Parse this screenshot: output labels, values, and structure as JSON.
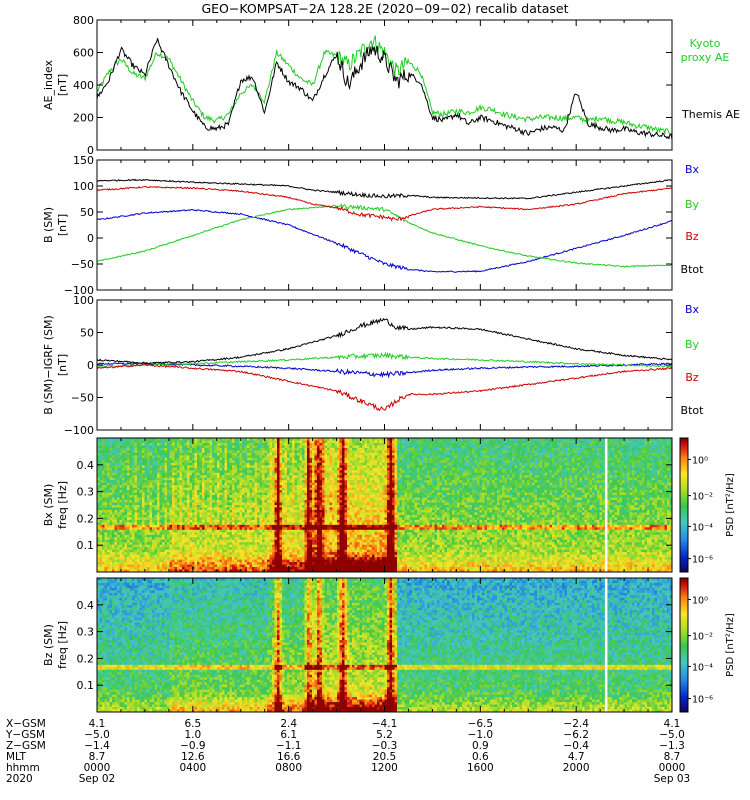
{
  "title": "GEO−KOMPSAT−2A 128.2E (2020−09−02) recalib dataset",
  "chart_data": [
    {
      "type": "line",
      "ylabel_1": "AE_index",
      "ylabel_2": "[nT]",
      "xlim": [
        0,
        24
      ],
      "ylim": [
        0,
        800
      ],
      "y_ticks": [
        "0",
        "200",
        "400",
        "600",
        "800"
      ],
      "series": [
        {
          "name": "Kyoto proxy AE",
          "color": "#22cc22",
          "x": [
            0,
            0.5,
            1,
            1.5,
            2,
            2.5,
            3,
            3.5,
            4,
            4.5,
            5,
            5.5,
            6,
            6.5,
            7,
            7.5,
            8,
            8.5,
            9,
            9.5,
            10,
            10.5,
            11,
            11.5,
            12,
            12.5,
            13,
            13.5,
            14,
            14.5,
            15,
            15.5,
            16,
            16.5,
            17,
            17.5,
            18,
            18.5,
            19,
            19.5,
            20,
            20.5,
            21,
            21.5,
            22,
            22.5,
            23,
            23.5,
            24
          ],
          "y": [
            360,
            480,
            560,
            470,
            440,
            600,
            560,
            430,
            300,
            200,
            180,
            220,
            350,
            400,
            300,
            600,
            520,
            440,
            400,
            600,
            580,
            520,
            600,
            680,
            600,
            480,
            540,
            480,
            230,
            220,
            240,
            230,
            260,
            250,
            220,
            200,
            190,
            200,
            200,
            195,
            200,
            180,
            200,
            180,
            170,
            150,
            140,
            120,
            110
          ]
        },
        {
          "name": "Themis AE",
          "color": "#000000",
          "x": [
            0,
            0.5,
            1,
            1.5,
            2,
            2.5,
            3,
            3.5,
            4,
            4.5,
            5,
            5.5,
            6,
            6.5,
            7,
            7.5,
            8,
            8.5,
            9,
            9.5,
            10,
            10.5,
            11,
            11.5,
            12,
            12.5,
            13,
            13.5,
            14,
            14.5,
            15,
            15.5,
            16,
            16.5,
            17,
            17.5,
            18,
            18.5,
            19,
            19.5,
            20,
            20.5,
            21,
            21.5,
            22,
            22.5,
            23,
            23.5,
            24
          ],
          "y": [
            320,
            430,
            620,
            520,
            460,
            680,
            520,
            360,
            240,
            140,
            130,
            160,
            430,
            450,
            230,
            540,
            420,
            380,
            300,
            460,
            590,
            400,
            530,
            630,
            560,
            420,
            470,
            420,
            200,
            180,
            220,
            160,
            200,
            180,
            150,
            130,
            100,
            130,
            140,
            120,
            360,
            160,
            140,
            120,
            130,
            110,
            100,
            90,
            80
          ]
        }
      ]
    },
    {
      "type": "line",
      "ylabel_1": "B (SM)",
      "ylabel_2": "[nT]",
      "xlim": [
        0,
        24
      ],
      "ylim": [
        -100,
        150
      ],
      "y_ticks": [
        "−100",
        "−50",
        "0",
        "50",
        "100",
        "150"
      ],
      "series": [
        {
          "name": "Bx",
          "color": "#0000cc",
          "x": [
            0,
            2,
            4,
            6,
            8,
            10,
            11,
            12,
            13,
            14,
            16,
            18,
            20,
            22,
            24
          ],
          "y": [
            35,
            48,
            54,
            46,
            25,
            -10,
            -30,
            -50,
            -60,
            -65,
            -64,
            -45,
            -20,
            5,
            33
          ]
        },
        {
          "name": "By",
          "color": "#22cc22",
          "x": [
            0,
            2,
            4,
            6,
            8,
            10,
            12,
            13,
            14,
            16,
            18,
            20,
            22,
            24
          ],
          "y": [
            -45,
            -25,
            5,
            35,
            55,
            62,
            55,
            30,
            10,
            -15,
            -35,
            -48,
            -55,
            -52
          ]
        },
        {
          "name": "Bz",
          "color": "#cc0000",
          "x": [
            0,
            2,
            4,
            6,
            8,
            9,
            10,
            11,
            12,
            12.5,
            13,
            14,
            16,
            18,
            20,
            22,
            24
          ],
          "y": [
            92,
            98,
            96,
            90,
            78,
            65,
            58,
            45,
            40,
            35,
            42,
            55,
            60,
            55,
            65,
            85,
            96
          ]
        },
        {
          "name": "Btot",
          "color": "#000000",
          "x": [
            0,
            2,
            4,
            6,
            8,
            9,
            10,
            11,
            12,
            13,
            14,
            16,
            18,
            20,
            22,
            24
          ],
          "y": [
            110,
            112,
            107,
            104,
            100,
            92,
            88,
            83,
            80,
            82,
            78,
            77,
            76,
            88,
            100,
            112
          ]
        }
      ]
    },
    {
      "type": "line",
      "ylabel_1": "B (SM)−IGRF (SM)",
      "ylabel_2": "[nT]",
      "xlim": [
        0,
        24
      ],
      "ylim": [
        -100,
        100
      ],
      "y_ticks": [
        "−100",
        "−50",
        "0",
        "50",
        "100"
      ],
      "series": [
        {
          "name": "Bx",
          "color": "#0000cc",
          "x": [
            0,
            2,
            4,
            6,
            8,
            10,
            12,
            13,
            14,
            16,
            18,
            20,
            22,
            24
          ],
          "y": [
            2,
            2,
            0,
            -2,
            -5,
            -10,
            -15,
            -12,
            -8,
            -5,
            -3,
            -2,
            0,
            2
          ]
        },
        {
          "name": "By",
          "color": "#22cc22",
          "x": [
            0,
            2,
            4,
            6,
            8,
            10,
            12,
            13,
            14,
            16,
            18,
            20,
            22,
            24
          ],
          "y": [
            -2,
            0,
            2,
            5,
            8,
            12,
            15,
            12,
            10,
            8,
            5,
            2,
            0,
            -2
          ]
        },
        {
          "name": "Bz",
          "color": "#cc0000",
          "x": [
            0,
            2,
            4,
            6,
            8,
            10,
            11,
            12,
            12.5,
            13,
            14,
            16,
            18,
            20,
            22,
            24
          ],
          "y": [
            -5,
            0,
            -5,
            -10,
            -25,
            -40,
            -55,
            -70,
            -55,
            -45,
            -45,
            -40,
            -30,
            -20,
            -10,
            -5
          ]
        },
        {
          "name": "Btot",
          "color": "#000000",
          "x": [
            0,
            2,
            4,
            6,
            8,
            10,
            11,
            12,
            12.5,
            13,
            14,
            16,
            18,
            20,
            22,
            24
          ],
          "y": [
            8,
            3,
            5,
            12,
            25,
            45,
            60,
            70,
            58,
            55,
            58,
            55,
            40,
            25,
            15,
            8
          ]
        }
      ]
    },
    {
      "type": "heatmap",
      "ylabel_1": "Bx (SM)",
      "ylabel_2": "freq [Hz]",
      "xlim": [
        0,
        24
      ],
      "ylim": [
        0,
        0.5
      ],
      "y_ticks": [
        "0.1",
        "0.2",
        "0.3",
        "0.4"
      ],
      "colorbar_label": "PSD [nT²/Hz]",
      "colorbar_ticks": [
        "10⁰",
        "10⁻²",
        "10⁻⁴",
        "10⁻⁶"
      ],
      "events_hours": [
        7.5,
        8.8,
        9.2,
        10.2,
        12.2
      ],
      "gap_hours": [
        21.2
      ]
    },
    {
      "type": "heatmap",
      "ylabel_1": "Bz (SM)",
      "ylabel_2": "freq [Hz]",
      "xlim": [
        0,
        24
      ],
      "ylim": [
        0,
        0.5
      ],
      "y_ticks": [
        "0.1",
        "0.2",
        "0.3",
        "0.4"
      ],
      "colorbar_label": "PSD [nT²/Hz]",
      "colorbar_ticks": [
        "10⁰",
        "10⁻²",
        "10⁻⁴",
        "10⁻⁶"
      ],
      "events_hours": [
        7.5,
        8.8,
        9.2,
        10.2,
        12.2
      ],
      "gap_hours": [
        21.2
      ]
    }
  ],
  "x_axis": {
    "row_labels": [
      "X−GSM",
      "Y−GSM",
      "Z−GSM",
      "MLT",
      "hhmm",
      "2020"
    ],
    "columns": [
      {
        "hour": 0,
        "values": [
          "4.1",
          "−5.0",
          "−1.4",
          "8.7",
          "0000",
          "Sep 02"
        ]
      },
      {
        "hour": 4,
        "values": [
          "6.5",
          "1.0",
          "−0.9",
          "12.6",
          "0400",
          ""
        ]
      },
      {
        "hour": 8,
        "values": [
          "2.4",
          "6.1",
          "−1.1",
          "16.6",
          "0800",
          ""
        ]
      },
      {
        "hour": 12,
        "values": [
          "−4.1",
          "5.2",
          "−0.3",
          "20.5",
          "1200",
          ""
        ]
      },
      {
        "hour": 16,
        "values": [
          "−6.5",
          "−1.0",
          "0.9",
          "0.6",
          "1600",
          ""
        ]
      },
      {
        "hour": 20,
        "values": [
          "−2.4",
          "−6.2",
          "−0.4",
          "4.7",
          "2000",
          ""
        ]
      },
      {
        "hour": 24,
        "values": [
          "4.1",
          "−5.0",
          "−1.3",
          "8.7",
          "0000",
          "Sep 03"
        ]
      }
    ]
  }
}
